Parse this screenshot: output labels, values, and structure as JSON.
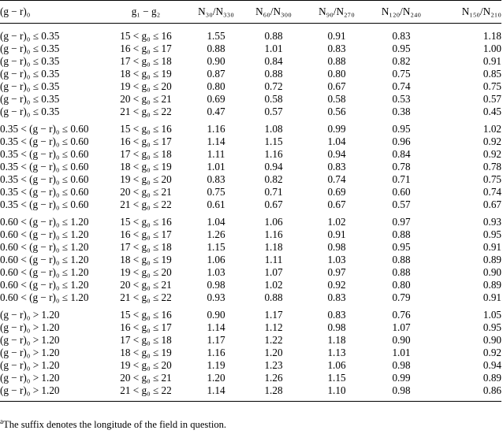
{
  "table": {
    "headers": [
      "(g − r)₀",
      "g₁ − g₂",
      "N₃₀/N₃₃₀",
      "N₆₀/N₃₀₀",
      "N₉₀/N₂₇₀",
      "N₁₂₀/N₂₄₀",
      "N₁₅₀/N₂₁₀"
    ],
    "groups": [
      {
        "rows": [
          [
            "(g − r)₀ ≤ 0.35",
            "15 < g₀ ≤ 16",
            "1.55",
            "0.88",
            "0.91",
            "0.83",
            "1.18"
          ],
          [
            "(g − r)₀ ≤ 0.35",
            "16 < g₀ ≤ 17",
            "0.88",
            "1.01",
            "0.83",
            "0.95",
            "1.00"
          ],
          [
            "(g − r)₀ ≤ 0.35",
            "17 < g₀ ≤ 18",
            "0.90",
            "0.84",
            "0.88",
            "0.82",
            "0.91"
          ],
          [
            "(g − r)₀ ≤ 0.35",
            "18 < g₀ ≤ 19",
            "0.87",
            "0.88",
            "0.80",
            "0.75",
            "0.85"
          ],
          [
            "(g − r)₀ ≤ 0.35",
            "19 < g₀ ≤ 20",
            "0.80",
            "0.72",
            "0.67",
            "0.74",
            "0.75"
          ],
          [
            "(g − r)₀ ≤ 0.35",
            "20 < g₀ ≤ 21",
            "0.69",
            "0.58",
            "0.58",
            "0.53",
            "0.57"
          ],
          [
            "(g − r)₀ ≤ 0.35",
            "21 < g₀ ≤ 22",
            "0.47",
            "0.57",
            "0.56",
            "0.38",
            "0.45"
          ]
        ]
      },
      {
        "rows": [
          [
            "0.35 < (g − r)₀ ≤ 0.60",
            "15 < g₀ ≤ 16",
            "1.16",
            "1.08",
            "0.99",
            "0.95",
            "1.02"
          ],
          [
            "0.35 < (g − r)₀ ≤ 0.60",
            "16 < g₀ ≤ 17",
            "1.14",
            "1.15",
            "1.04",
            "0.96",
            "0.92"
          ],
          [
            "0.35 < (g − r)₀ ≤ 0.60",
            "17 < g₀ ≤ 18",
            "1.11",
            "1.16",
            "0.94",
            "0.84",
            "0.92"
          ],
          [
            "0.35 < (g − r)₀ ≤ 0.60",
            "18 < g₀ ≤ 19",
            "1.01",
            "0.94",
            "0.83",
            "0.78",
            "0.78"
          ],
          [
            "0.35 < (g − r)₀ ≤ 0.60",
            "19 < g₀ ≤ 20",
            "0.83",
            "0.82",
            "0.74",
            "0.71",
            "0.75"
          ],
          [
            "0.35 < (g − r)₀ ≤ 0.60",
            "20 < g₀ ≤ 21",
            "0.75",
            "0.71",
            "0.69",
            "0.60",
            "0.74"
          ],
          [
            "0.35 < (g − r)₀ ≤ 0.60",
            "21 < g₀ ≤ 22",
            "0.61",
            "0.67",
            "0.67",
            "0.57",
            "0.67"
          ]
        ]
      },
      {
        "rows": [
          [
            "0.60 < (g − r)₀ ≤ 1.20",
            "15 < g₀ ≤ 16",
            "1.04",
            "1.06",
            "1.02",
            "0.97",
            "0.93"
          ],
          [
            "0.60 < (g − r)₀ ≤ 1.20",
            "16 < g₀ ≤ 17",
            "1.26",
            "1.16",
            "0.91",
            "0.88",
            "0.95"
          ],
          [
            "0.60 < (g − r)₀ ≤ 1.20",
            "17 < g₀ ≤ 18",
            "1.15",
            "1.18",
            "0.98",
            "0.95",
            "0.91"
          ],
          [
            "0.60 < (g − r)₀ ≤ 1.20",
            "18 < g₀ ≤ 19",
            "1.06",
            "1.11",
            "1.03",
            "0.88",
            "0.89"
          ],
          [
            "0.60 < (g − r)₀ ≤ 1.20",
            "19 < g₀ ≤ 20",
            "1.03",
            "1.07",
            "0.97",
            "0.88",
            "0.90"
          ],
          [
            "0.60 < (g − r)₀ ≤ 1.20",
            "20 < g₀ ≤ 21",
            "0.98",
            "1.02",
            "0.92",
            "0.80",
            "0.89"
          ],
          [
            "0.60 < (g − r)₀ ≤ 1.20",
            "21 < g₀ ≤ 22",
            "0.93",
            "0.88",
            "0.83",
            "0.79",
            "0.91"
          ]
        ]
      },
      {
        "rows": [
          [
            "(g − r)₀ > 1.20",
            "15 < g₀ ≤ 16",
            "0.90",
            "1.17",
            "0.83",
            "0.76",
            "1.05"
          ],
          [
            "(g − r)₀ > 1.20",
            "16 < g₀ ≤ 17",
            "1.14",
            "1.12",
            "0.98",
            "1.07",
            "0.95"
          ],
          [
            "(g − r)₀ > 1.20",
            "17 < g₀ ≤ 18",
            "1.17",
            "1.22",
            "1.18",
            "0.90",
            "0.90"
          ],
          [
            "(g − r)₀ > 1.20",
            "18 < g₀ ≤ 19",
            "1.16",
            "1.20",
            "1.13",
            "1.01",
            "0.92"
          ],
          [
            "(g − r)₀ > 1.20",
            "19 < g₀ ≤ 20",
            "1.19",
            "1.23",
            "1.06",
            "0.98",
            "0.94"
          ],
          [
            "(g − r)₀ > 1.20",
            "20 < g₀ ≤ 21",
            "1.20",
            "1.26",
            "1.15",
            "0.99",
            "0.89"
          ],
          [
            "(g − r)₀ > 1.20",
            "21 < g₀ ≤ 22",
            "1.14",
            "1.28",
            "1.10",
            "0.98",
            "0.86"
          ]
        ]
      }
    ]
  },
  "footnote": {
    "marker": "a",
    "text": "The suffix denotes the longitude of the field in question."
  }
}
